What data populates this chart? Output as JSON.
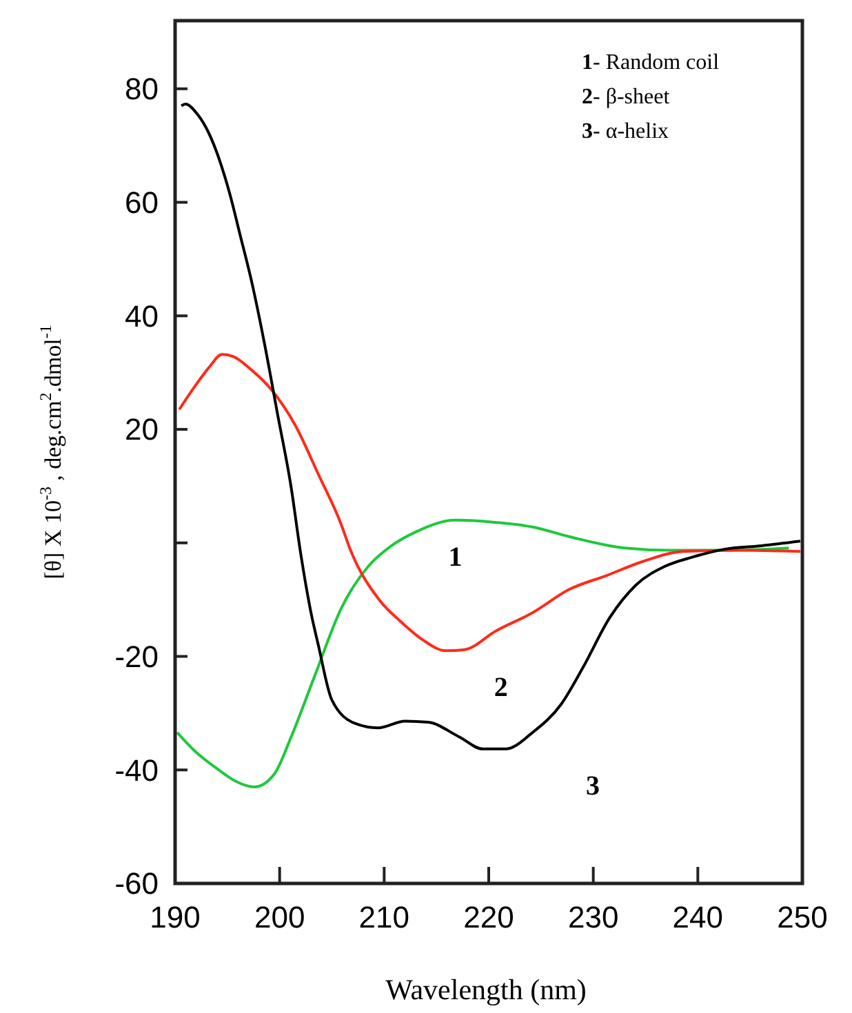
{
  "chart_data": {
    "type": "line",
    "xlabel": "Wavelength (nm)",
    "ylabel": "[θ] X 10$^{-3}$ , deg.cm$^{2}$.dmol$^{-1}$",
    "xlim": [
      190,
      250
    ],
    "xticks": [
      190,
      200,
      210,
      220,
      230,
      240,
      250
    ],
    "ylim": [
      -60,
      92
    ],
    "yticks": [
      -60,
      -40,
      -20,
      {
        "value": 0,
        "label": null
      },
      20,
      40,
      60,
      80
    ],
    "grid": false,
    "marker": "none",
    "line_style": "solid",
    "series": [
      {
        "name": "1",
        "color": "#1ec83c",
        "x": [
          190.2,
          191.9,
          194.1,
          195.8,
          197.6,
          199.5,
          201.1,
          203.3,
          205.9,
          208.5,
          210.7,
          213.1,
          216.8,
          220.7,
          224.2,
          227.7,
          233.0,
          237.3,
          242.6,
          248.7
        ],
        "values": [
          -33.4,
          -36.7,
          -39.9,
          -42.0,
          -43.0,
          -40.7,
          -34.2,
          -23.7,
          -11.5,
          -4.1,
          -0.5,
          2.0,
          4.0,
          3.6,
          2.8,
          1.1,
          -0.9,
          -1.3,
          -1.3,
          -0.9
        ]
      },
      {
        "name": "2",
        "color": "#ff2a1a",
        "x": [
          190.4,
          191.9,
          193.2,
          194.5,
          195.6,
          197.1,
          199.3,
          201.5,
          203.7,
          205.9,
          206.7,
          209.6,
          211.6,
          213.7,
          215.9,
          217.7,
          220.7,
          224.2,
          227.7,
          231.2,
          234.7,
          238.6,
          243.9,
          249.8
        ],
        "values": [
          23.5,
          27.6,
          30.8,
          33.2,
          32.8,
          30.8,
          26.8,
          20.7,
          12.1,
          3.2,
          -0.9,
          -10.2,
          -13.9,
          -17.1,
          -19.0,
          -18.8,
          -15.5,
          -12.3,
          -8.2,
          -5.8,
          -3.3,
          -1.5,
          -1.3,
          -1.5
        ]
      },
      {
        "name": "3",
        "color": "#000000",
        "x": [
          190.6,
          191.0,
          192.1,
          193.4,
          195.2,
          196.2,
          197.4,
          198.5,
          199.8,
          201.1,
          202.0,
          203.0,
          203.7,
          205.0,
          207.2,
          209.4,
          212.0,
          214.2,
          217.2,
          219.4,
          221.6,
          224.2,
          226.9,
          229.0,
          231.6,
          234.1,
          236.9,
          239.5,
          242.6,
          246.1,
          249.8
        ],
        "values": [
          77.0,
          77.3,
          75.6,
          71.5,
          61.7,
          54.4,
          45.4,
          35.6,
          22.7,
          9.8,
          -1.7,
          -12.3,
          -18.0,
          -27.7,
          -31.8,
          -32.6,
          -31.4,
          -31.6,
          -34.2,
          -36.3,
          -36.3,
          -33.4,
          -28.5,
          -22.0,
          -13.1,
          -7.4,
          -4.1,
          -2.5,
          -1.1,
          -0.5,
          0.3
        ]
      }
    ],
    "annotations": [
      "1- Random coil",
      "2- β-sheet",
      "3- α-helix"
    ]
  }
}
